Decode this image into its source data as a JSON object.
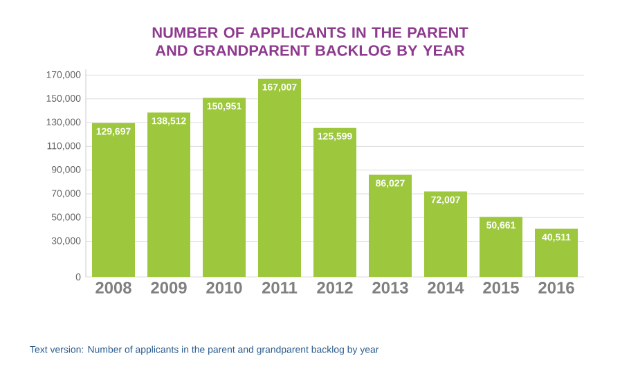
{
  "chart_data": {
    "type": "bar",
    "title": "NUMBER OF APPLICANTS IN THE PARENT AND GRANDPARENT BACKLOG BY YEAR",
    "categories": [
      "2008",
      "2009",
      "2010",
      "2011",
      "2012",
      "2013",
      "2014",
      "2015",
      "2016"
    ],
    "values": [
      129697,
      138512,
      150951,
      167007,
      125599,
      86027,
      72007,
      50661,
      40511
    ],
    "color": "#9dc83e",
    "ylim": [
      0,
      175000
    ],
    "yticks": [
      {
        "value": 0,
        "label": "0"
      },
      {
        "value": 30000,
        "label": "30,000"
      },
      {
        "value": 50000,
        "label": "50,000"
      },
      {
        "value": 70000,
        "label": "70,000"
      },
      {
        "value": 90000,
        "label": "90,000"
      },
      {
        "value": 110000,
        "label": "110,000"
      },
      {
        "value": 130000,
        "label": "130,000"
      },
      {
        "value": 150000,
        "label": "150,000"
      },
      {
        "value": 170000,
        "label": "170,000"
      }
    ],
    "value_labels": [
      "129,697",
      "138,512",
      "150,951",
      "167,007",
      "125,599",
      "86,027",
      "72,007",
      "50,661",
      "40,511"
    ],
    "grid": "y",
    "annotations": [
      "Text version: Number of applicants in the parent and grandparent backlog by year"
    ]
  }
}
